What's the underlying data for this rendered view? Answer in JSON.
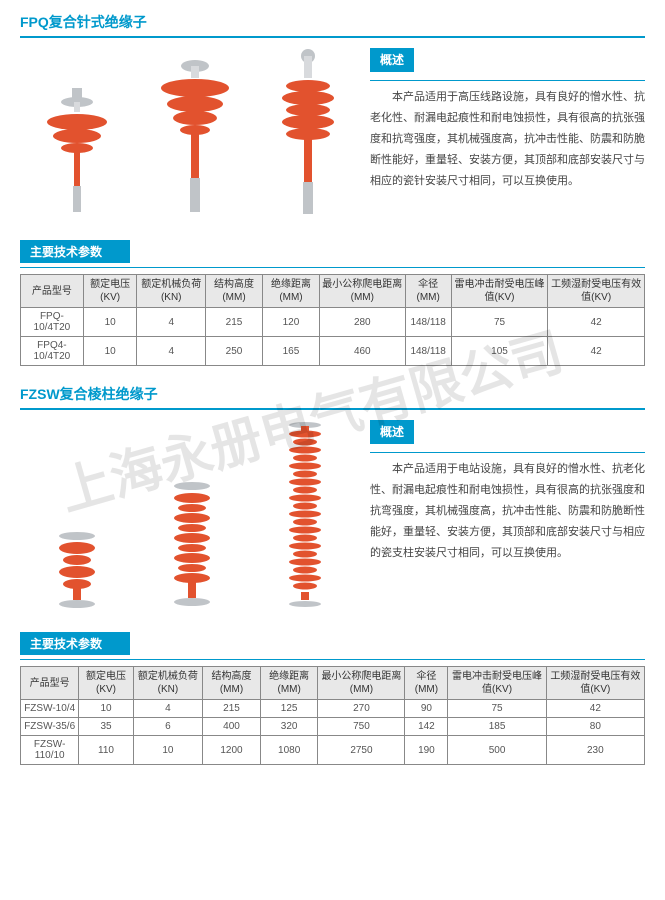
{
  "watermark": "上海永册电气有限公司",
  "section1": {
    "title": "FPQ复合针式绝缘子",
    "overview_label": "概述",
    "overview_text": "本产品适用于高压线路设施，具有良好的憎水性、抗老化性、耐漏电起痕性和耐电蚀损性，具有很高的抗张强度和抗弯强度，其机械强度高，抗冲击性能、防震和防脆断性能好，重量轻、安装方便，其顶部和底部安装尺寸与相应的瓷针安装尺寸相同，可以互换使用。",
    "params_label": "主要技术参数",
    "table": {
      "columns": [
        "产品型号",
        "额定电压(KV)",
        "额定机械负荷(KN)",
        "结构高度(MM)",
        "绝缘距离(MM)",
        "最小公称爬电距离(MM)",
        "伞径(MM)",
        "雷电冲击耐受电压峰值(KV)",
        "工频湿耐受电压有效值(KV)"
      ],
      "rows": [
        [
          "FPQ-10/4T20",
          "10",
          "4",
          "215",
          "120",
          "280",
          "148/118",
          "75",
          "42"
        ],
        [
          "FPQ4-10/4T20",
          "10",
          "4",
          "250",
          "165",
          "460",
          "148/118",
          "105",
          "42"
        ]
      ]
    }
  },
  "section2": {
    "title": "FZSW复合棱柱绝缘子",
    "overview_label": "概述",
    "overview_text": "本产品适用于电站设施，具有良好的憎水性、抗老化性、耐漏电起痕性和耐电蚀损性，具有很高的抗张强度和抗弯强度，其机械强度高，抗冲击性能、防震和防脆断性能好，重量轻、安装方便，其顶部和底部安装尺寸与相应的瓷支柱安装尺寸相同，可以互换使用。",
    "params_label": "主要技术参数",
    "table": {
      "columns": [
        "产品型号",
        "额定电压(KV)",
        "额定机械负荷(KN)",
        "结构高度(MM)",
        "绝缘距离(MM)",
        "最小公称爬电距离(MM)",
        "伞径(MM)",
        "雷电冲击耐受电压峰值(KV)",
        "工频湿耐受电压有效值(KV)"
      ],
      "rows": [
        [
          "FZSW-10/4",
          "10",
          "4",
          "215",
          "125",
          "270",
          "90",
          "75",
          "42"
        ],
        [
          "FZSW-35/6",
          "35",
          "6",
          "400",
          "320",
          "750",
          "142",
          "185",
          "80"
        ],
        [
          "FZSW-110/10",
          "110",
          "10",
          "1200",
          "1080",
          "2750",
          "190",
          "500",
          "230"
        ]
      ]
    }
  },
  "colors": {
    "accent": "#0099cc",
    "insulator": "#e2522e",
    "metal": "#c0c4c8"
  }
}
